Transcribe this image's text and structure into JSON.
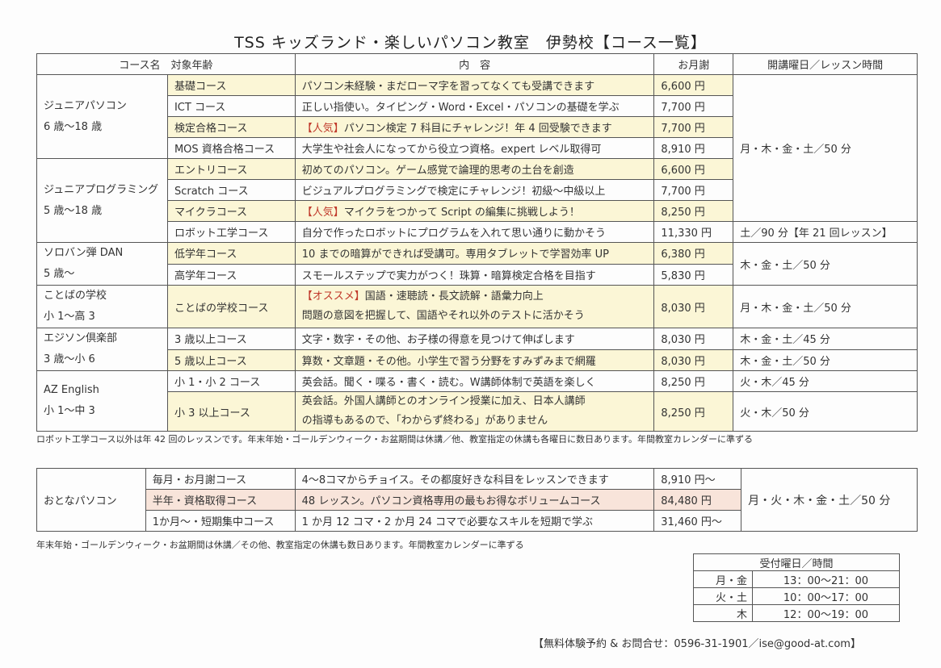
{
  "title": "TSS キッズランド・楽しいパソコン教室　伊勢校【コース一覧】",
  "headers": {
    "course": "コース名　対象年齢",
    "content": "内　容",
    "price": "お月謝",
    "schedule": "開講曜日／レッスン時間"
  },
  "groups": [
    {
      "name": "ジュニアパソコン",
      "age": "6 歳～18 歳",
      "courses": [
        {
          "name": "基礎コース",
          "content": "パソコン未経験・まだローマ字を習ってなくても受講できます",
          "price": "6,600 円",
          "hl": "y"
        },
        {
          "name": "ICT コース",
          "content": "正しい指使い。タイピング・Word・Excel・パソコンの基礎を学ぶ",
          "price": "7,700 円"
        },
        {
          "name": "検定合格コース",
          "tag": "【人気】",
          "content": "パソコン検定 7 科目にチャレンジ！年 4 回受験できます",
          "price": "7,700 円",
          "hl": "y"
        },
        {
          "name": "MOS 資格合格コース",
          "content": "大学生や社会人になってから役立つ資格。expert レベル取得可",
          "price": "8,910 円"
        }
      ]
    },
    {
      "name": "ジュニアプログラミング",
      "age": "5 歳～18 歳",
      "courses": [
        {
          "name": "エントリコース",
          "content": "初めてのパソコン。ゲーム感覚で論理的思考の土台を創造",
          "price": "6,600 円",
          "hl": "y"
        },
        {
          "name": "Scratch コース",
          "content": "ビジュアルプログラミングで検定にチャレンジ！初級～中級以上",
          "price": "7,700 円"
        },
        {
          "name": "マイクラコース",
          "tag": "【人気】",
          "content": "マイクラをつかって Script の編集に挑戦しよう！",
          "price": "8,250 円",
          "hl": "y"
        },
        {
          "name": "ロボット工学コース",
          "content": "自分で作ったロボットにプログラムを入れて思い通りに動かそう",
          "price": "11,330 円",
          "schedule": "土／90 分【年 21 回レッスン】"
        }
      ]
    },
    {
      "name": "ソロバン弾 DAN",
      "age": "5 歳～",
      "schedule": "木・金・土／50 分",
      "courses": [
        {
          "name": "低学年コース",
          "content": "10 までの暗算ができれば受講可。専用タブレットで学習効率 UP",
          "price": "6,380 円",
          "hl": "y"
        },
        {
          "name": "高学年コース",
          "content": "スモールステップで実力がつく！珠算・暗算検定合格を目指す",
          "price": "5,830 円"
        }
      ]
    },
    {
      "name": "ことばの学校",
      "age": "小 1～高 3",
      "courses": [
        {
          "name": "ことばの学校コース",
          "tag": "【オススメ】",
          "content": "国語・速聴読・長文読解・語彙力向上",
          "content2": "問題の意図を把握して、国語やそれ以外のテストに活かそう",
          "price": "8,030 円",
          "hl": "y",
          "schedule": "月・木・金・土／50 分"
        }
      ]
    },
    {
      "name": "エジソン倶楽部",
      "age": "3 歳～小 6",
      "courses": [
        {
          "name": "3 歳以上コース",
          "content": "文字・数字・その他、お子様の得意を見つけて伸ばします",
          "price": "8,030 円",
          "schedule": "木・金・土／45 分"
        },
        {
          "name": "5 歳以上コース",
          "content": "算数・文章題・その他。小学生で習う分野をすみずみまで網羅",
          "price": "8,030 円",
          "hl": "y",
          "schedule": "木・金・土／50 分"
        }
      ]
    },
    {
      "name": "AZ English",
      "age": "小 1～中 3",
      "courses": [
        {
          "name": "小 1・小 2 コース",
          "content": "英会話。聞く・喋る・書く・読む。W講師体制で英語を楽しく",
          "price": "8,250 円",
          "schedule": "火・木／45 分"
        },
        {
          "name": "小 3 以上コース",
          "content": "英会話。外国人講師とのオンライン授業に加え、日本人講師",
          "content2": "の指導もあるので、「わからず終わる」がありません",
          "price": "8,250 円",
          "hl": "y",
          "schedule": "火・木／50 分"
        }
      ]
    }
  ],
  "junior_schedule": "月・木・金・土／50 分",
  "note1": "ロボット工学コース以外は年 42 回のレッスンです。年末年始・ゴールデンウィーク・お盆期間は休講／他、教室指定の休講も各曜日に数日あります。年間教室カレンダーに準ずる",
  "adult": {
    "name": "おとなパソコン",
    "schedule": "月・火・木・金・土／50 分",
    "courses": [
      {
        "name": "毎月・お月謝コース",
        "content": "4～8コマからチョイス。その都度好きな科目をレッスンできます",
        "price": "8,910 円～"
      },
      {
        "name": "半年・資格取得コース",
        "content": "48 レッスン。パソコン資格専用の最もお得なボリュームコース",
        "price": "84,480 円",
        "hl": "p"
      },
      {
        "name": "1か月～・短期集中コース",
        "content": "1 か月 12 コマ・2 か月 24 コマで必要なスキルを短期で学ぶ",
        "price": "31,460 円～"
      }
    ]
  },
  "note2": "年末年始・ゴールデンウィーク・お盆期間は休講／その他、教室指定の休講も数日あります。年間教室カレンダーに準ずる",
  "hours": {
    "title": "受付曜日／時間",
    "rows": [
      {
        "day": "月・金",
        "time": "13：00～21：00"
      },
      {
        "day": "火・土",
        "time": "10：00～17：00"
      },
      {
        "day": "木",
        "time": "12：00～19：00"
      }
    ]
  },
  "contact": "【無料体験予約 & お問合せ：0596-31-1901／ise@good-at.com】",
  "colors": {
    "highlight": "#fbf6d6",
    "pink": "#f8e4da",
    "accent_red": "#c0392b"
  }
}
